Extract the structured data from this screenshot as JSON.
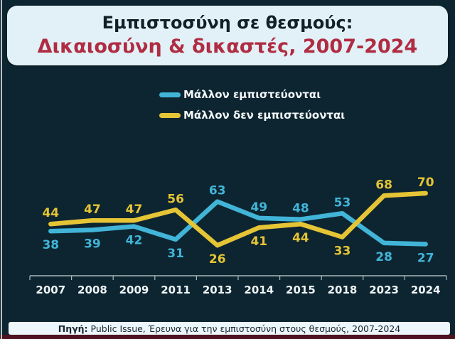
{
  "title": {
    "line1": "Εμπιστοσύνη σε θεσμούς:",
    "line2": "Δικαιοσύνη & δικαστές, 2007-2024"
  },
  "legend": {
    "trust": "Μάλλον εμπιστεύονται",
    "distrust": "Μάλλον δεν εμπιστεύονται"
  },
  "footer": {
    "label": "Πηγή:",
    "text": "Public Issue, Έρευνα για την εμπιστοσύνη στους θεσμούς, 2007-2024"
  },
  "colors": {
    "background": "#0d2530",
    "panel": "#e2f1f7",
    "title_text": "#121f29",
    "accent_red": "#b02c42",
    "trust_line": "#41b4d8",
    "distrust_line": "#e5c435",
    "axis": "#a9b8bd",
    "year_label": "#eef4f6",
    "bottom_strip": "#4e1220"
  },
  "chart_data": {
    "type": "line",
    "title": "Εμπιστοσύνη σε θεσμούς: Δικαιοσύνη & δικαστές, 2007-2024",
    "categories": [
      "2007",
      "2008",
      "2009",
      "2011",
      "2013",
      "2014",
      "2015",
      "2018",
      "2023",
      "2024"
    ],
    "series": [
      {
        "name": "Μάλλον εμπιστεύονται",
        "color": "#41b4d8",
        "values": [
          38,
          39,
          42,
          31,
          63,
          49,
          48,
          53,
          28,
          27
        ]
      },
      {
        "name": "Μάλλον δεν εμπιστεύονται",
        "color": "#e5c435",
        "values": [
          44,
          47,
          47,
          56,
          26,
          41,
          44,
          33,
          68,
          70
        ]
      }
    ],
    "xlabel": "",
    "ylabel": "",
    "ylim": [
      0,
      100
    ],
    "value_labels": true,
    "grid": false,
    "legend_position": "top"
  }
}
